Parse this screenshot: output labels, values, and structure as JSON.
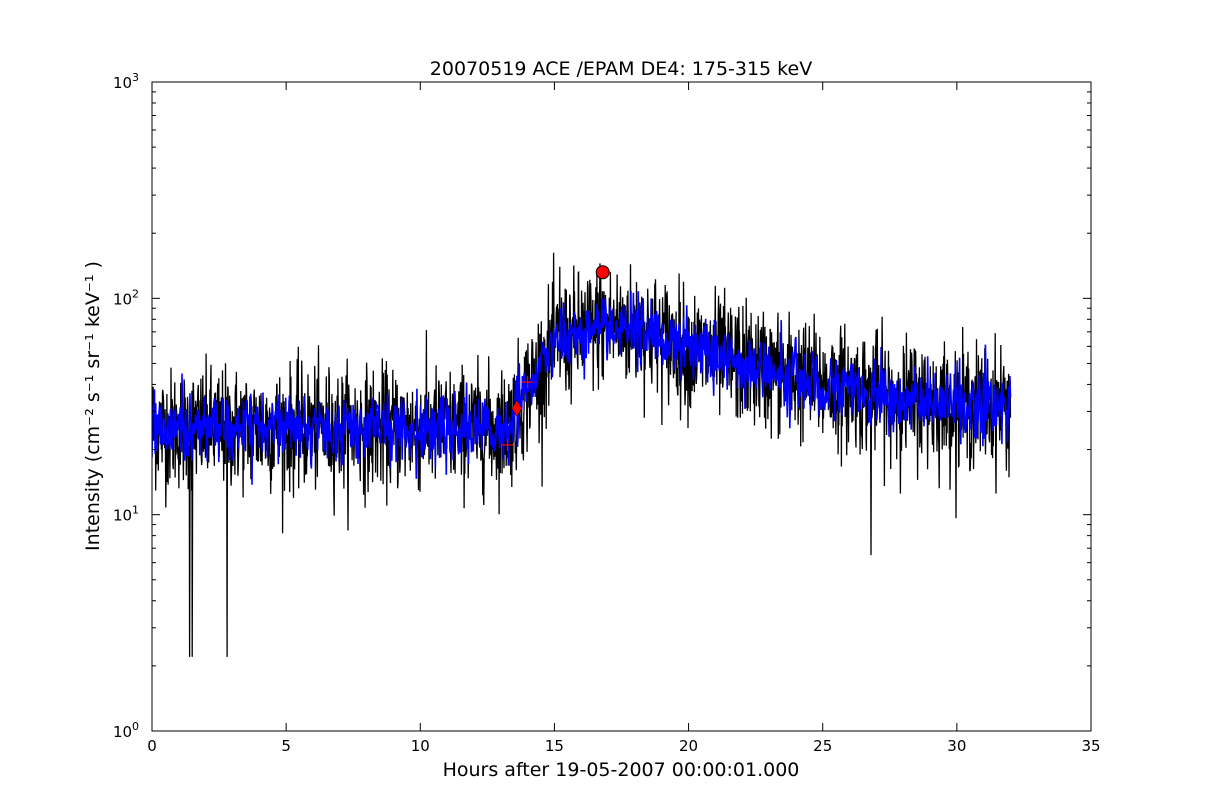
{
  "chart_data": {
    "type": "line",
    "title": "20070519 ACE /EPAM DE4: 175-315 keV",
    "xlabel": "Hours after 19-05-2007 00:00:01.000",
    "ylabel": "Intensity (cm⁻² s⁻¹ sr⁻¹ keV⁻¹ )",
    "x_scale": "linear",
    "y_scale": "log",
    "xlim": [
      0,
      35
    ],
    "ylim": [
      1,
      1000
    ],
    "x_ticks": [
      "0",
      "5",
      "10",
      "15",
      "20",
      "25",
      "30",
      "35"
    ],
    "y_ticks": [
      {
        "base": "10",
        "exp": "0"
      },
      {
        "base": "10",
        "exp": "1"
      },
      {
        "base": "10",
        "exp": "2"
      },
      {
        "base": "10",
        "exp": "3"
      }
    ],
    "grid": false,
    "legend": null,
    "series": [
      {
        "role": "raw",
        "color": "#000000",
        "envelope": {
          "x": [
            0,
            2,
            4,
            6,
            8,
            10,
            12,
            13,
            13.5,
            14,
            14.5,
            15,
            16,
            17,
            18,
            19,
            20,
            21,
            22,
            23,
            24,
            25,
            26,
            27,
            28,
            29,
            30,
            31,
            32
          ],
          "y": [
            25,
            25,
            25,
            25,
            25,
            25,
            25,
            25,
            28,
            38,
            48,
            60,
            70,
            76,
            72,
            66,
            58,
            54,
            50,
            46,
            43,
            40,
            38,
            36,
            34,
            33,
            32,
            32,
            32
          ]
        },
        "extremes": [
          {
            "x": 1.4,
            "y": 2.2
          },
          {
            "x": 1.5,
            "y": 2.2
          },
          {
            "x": 2.8,
            "y": 2.2
          },
          {
            "x": 15.2,
            "y": 140
          },
          {
            "x": 16.7,
            "y": 145
          },
          {
            "x": 26.8,
            "y": 6.5
          }
        ]
      },
      {
        "role": "smoothed",
        "color": "#0000ff",
        "envelope": {
          "x": [
            0,
            2,
            4,
            6,
            8,
            10,
            12,
            13,
            13.5,
            14,
            14.5,
            15,
            16,
            17,
            18,
            19,
            20,
            21,
            22,
            23,
            24,
            25,
            26,
            27,
            28,
            29,
            30,
            31,
            32
          ],
          "y": [
            25,
            25,
            25,
            25,
            25,
            25,
            25,
            25,
            28,
            38,
            48,
            60,
            70,
            76,
            72,
            66,
            58,
            54,
            50,
            46,
            43,
            40,
            38,
            36,
            34,
            33,
            32,
            32,
            32
          ]
        }
      }
    ],
    "markers": [
      {
        "shape": "circle",
        "x": 16.8,
        "y": 132,
        "color": "#ff0000"
      },
      {
        "shape": "diamond",
        "x": 13.6,
        "y": 31,
        "color": "#ff0000"
      },
      {
        "shape": "plus",
        "x": 13.25,
        "y": 21,
        "color": "#ff0000"
      },
      {
        "shape": "plus",
        "x": 14.0,
        "y": 41,
        "color": "#ff0000"
      }
    ]
  }
}
